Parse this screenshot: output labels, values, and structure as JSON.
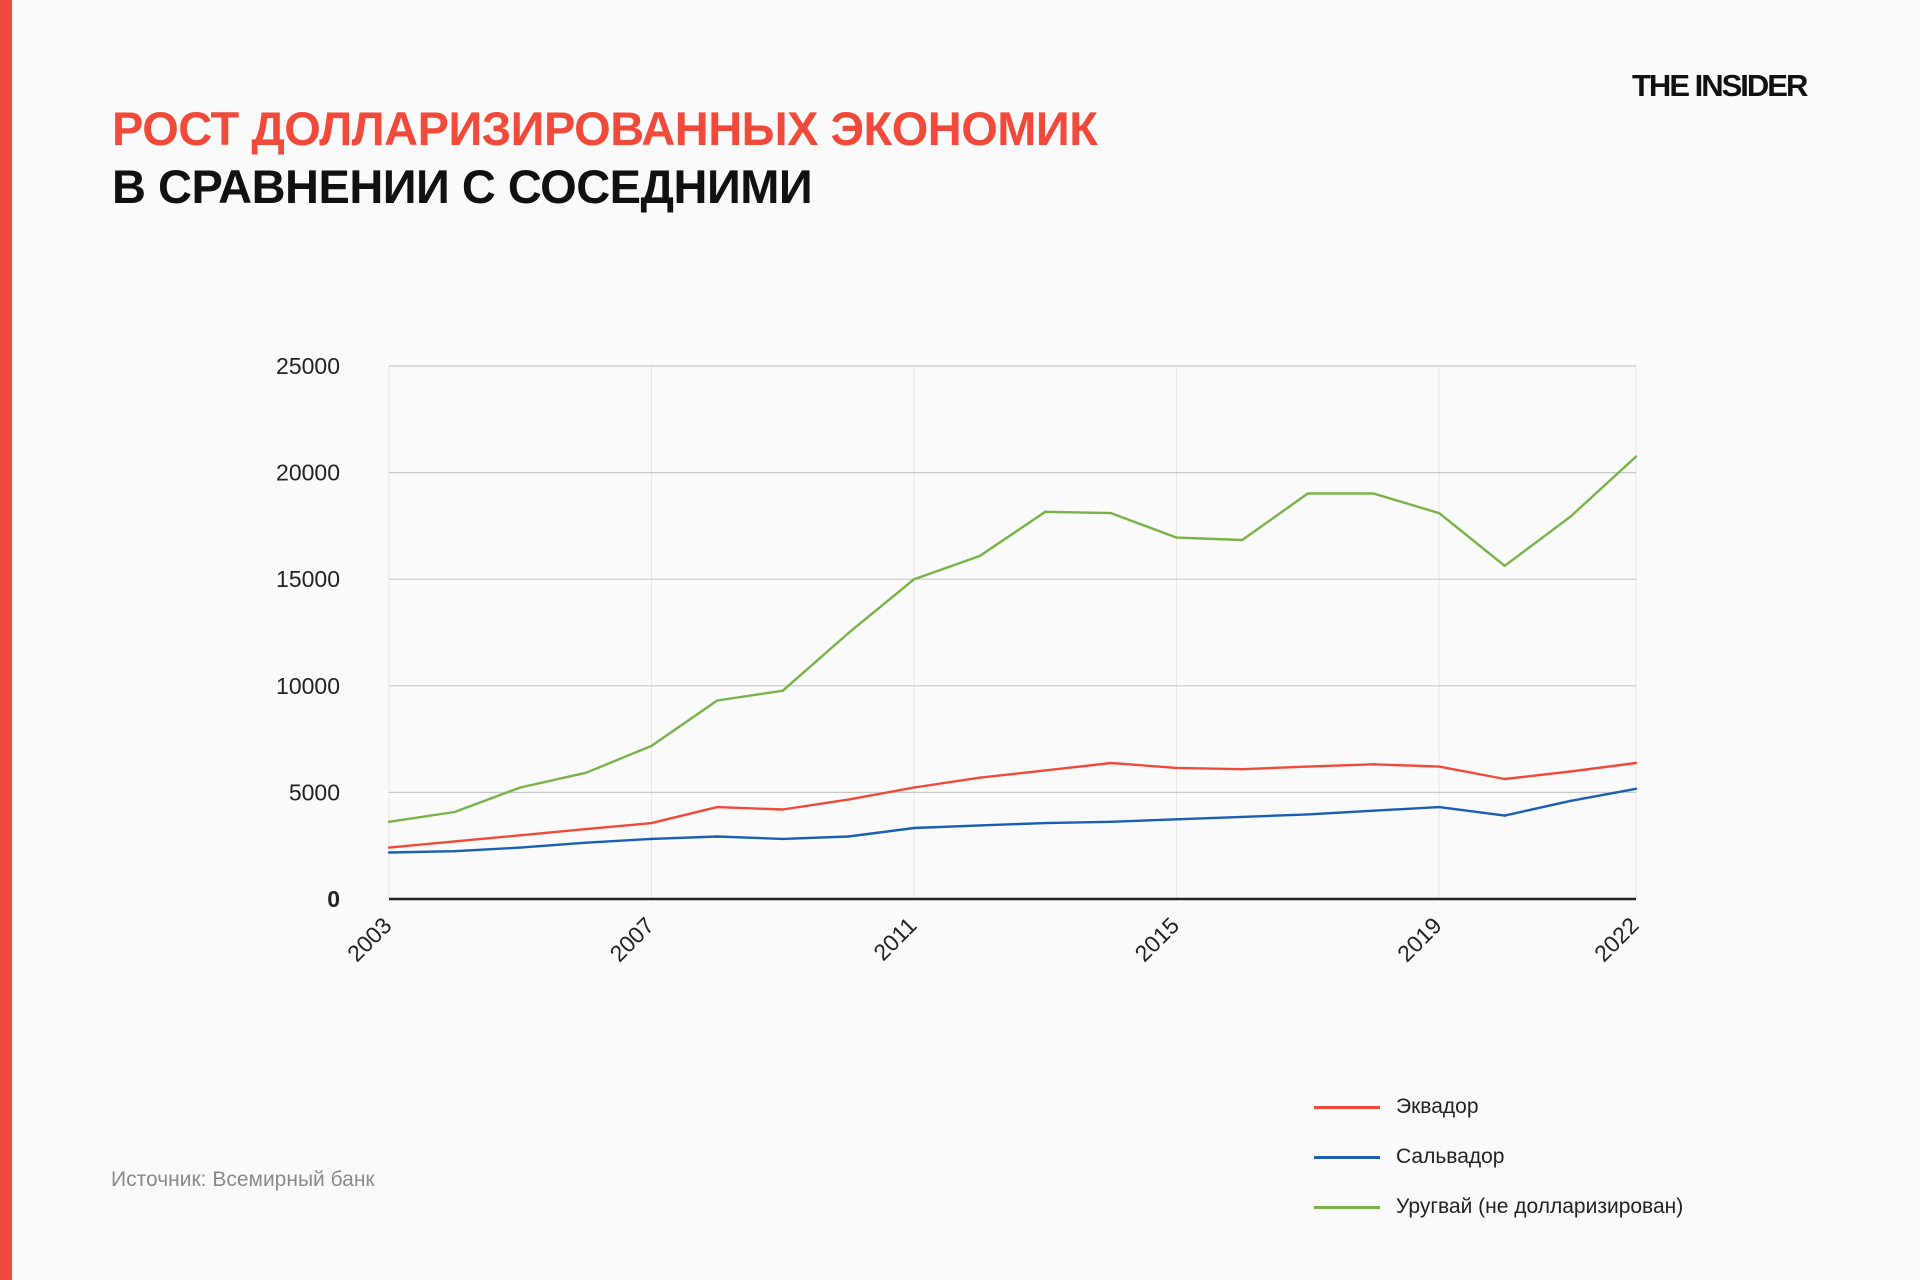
{
  "header": {
    "title_line1": "РОСТ ДОЛЛАРИЗИРОВАННЫХ ЭКОНОМИК",
    "title_line2": "В СРАВНЕНИИ С СОСЕДНИМИ",
    "logo": "THE INSIDER"
  },
  "source": "Источник: Всемирный банк",
  "colors": {
    "accent": "#f24a3a",
    "ecuador": "#f24a3a",
    "salvador": "#1a5fb4",
    "uruguay": "#77b347"
  },
  "chart_data": {
    "type": "line",
    "x": [
      2003,
      2004,
      2005,
      2006,
      2007,
      2008,
      2009,
      2010,
      2011,
      2012,
      2013,
      2014,
      2015,
      2016,
      2017,
      2018,
      2019,
      2020,
      2021,
      2022
    ],
    "xticks": [
      "2003",
      "2007",
      "2011",
      "2015",
      "2019",
      "2022"
    ],
    "yticks": [
      "0",
      "5000",
      "10000",
      "15000",
      "20000",
      "25000"
    ],
    "ylim": [
      0,
      25000
    ],
    "grid": true,
    "legend": "bottom-right",
    "series": [
      {
        "name": "Эквадор",
        "color": "#f24a3a",
        "values": [
          2410,
          2700,
          2990,
          3280,
          3560,
          4310,
          4200,
          4660,
          5230,
          5690,
          6030,
          6380,
          6150,
          6090,
          6210,
          6320,
          6210,
          5630,
          5980,
          6380
        ]
      },
      {
        "name": "Сальвадор",
        "color": "#1a5fb4",
        "values": [
          2180,
          2240,
          2410,
          2640,
          2820,
          2930,
          2820,
          2930,
          3330,
          3450,
          3560,
          3620,
          3740,
          3850,
          3970,
          4140,
          4310,
          3910,
          4600,
          5170
        ]
      },
      {
        "name": "Уругвай (не долларизирован)",
        "color": "#77b347",
        "values": [
          3620,
          4080,
          5230,
          5920,
          7180,
          9310,
          9770,
          12470,
          15000,
          16090,
          18160,
          18100,
          16950,
          16840,
          19020,
          19020,
          18100,
          15630,
          17930,
          20750
        ]
      }
    ]
  }
}
